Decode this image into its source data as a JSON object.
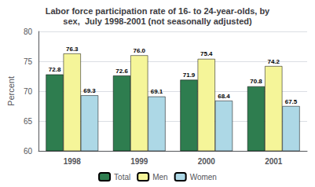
{
  "chart_data": {
    "type": "bar",
    "title": "Labor force participation rate of 16- to 24-year-olds, by\nsex,  July 1998-2001 (not seasonally adjusted)",
    "categories": [
      "1998",
      "1999",
      "2000",
      "2001"
    ],
    "series": [
      {
        "name": "Total",
        "color": "#2e7d4f",
        "values": [
          72.8,
          72.6,
          71.9,
          70.8
        ],
        "value_labels": [
          "72.8",
          "72.6",
          "71.9",
          "70.8"
        ]
      },
      {
        "name": "Men",
        "color": "#f5f599",
        "values": [
          76.3,
          76.0,
          75.4,
          74.2
        ],
        "value_labels": [
          "76.3",
          "76.0",
          "75.4",
          "74.2"
        ]
      },
      {
        "name": "Women",
        "color": "#add8e6",
        "values": [
          69.3,
          69.1,
          68.4,
          67.5
        ],
        "value_labels": [
          "69.3",
          "69.1",
          "68.4",
          "67.5"
        ]
      }
    ],
    "ylabel": "Percent",
    "ylim": [
      60,
      80
    ],
    "yticks": [
      60,
      65,
      70,
      75,
      80
    ],
    "grid": true,
    "legend": "bottom",
    "data_labels": true
  }
}
